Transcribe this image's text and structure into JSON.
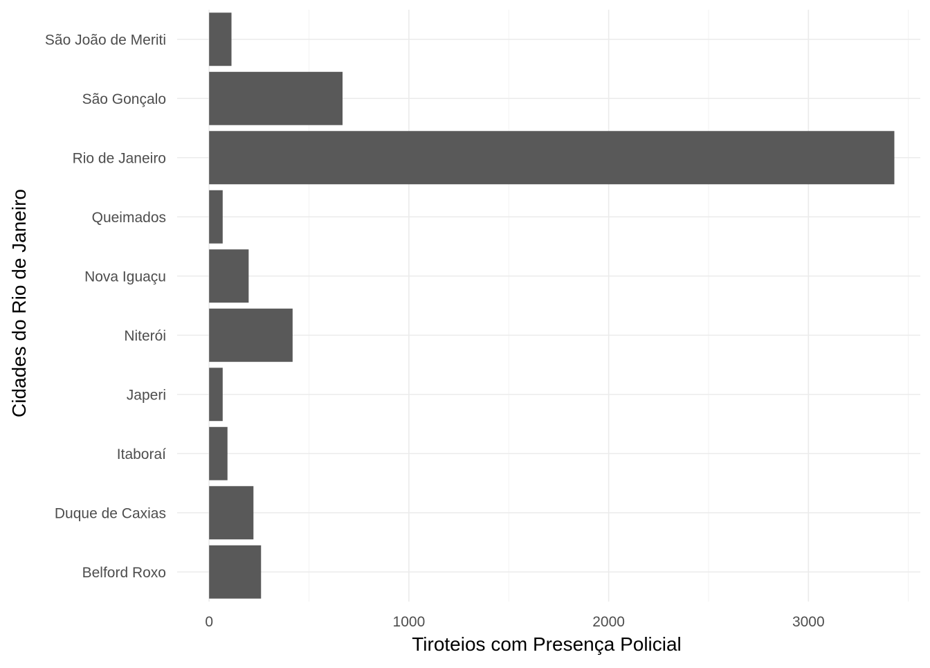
{
  "chart_data": {
    "type": "bar",
    "orientation": "horizontal",
    "title": "",
    "xlabel": "Tiroteios com Presença Policial",
    "ylabel": "Cidades do Rio de Janeiro",
    "categories": [
      "Belford Roxo",
      "Duque de Caxias",
      "Itaboraí",
      "Japeri",
      "Niterói",
      "Nova Iguaçu",
      "Queimados",
      "Rio de Janeiro",
      "São Gonçalo",
      "São João de Meriti"
    ],
    "values": [
      260,
      222,
      92,
      68,
      418,
      198,
      68,
      3430,
      668,
      112
    ],
    "xlim": [
      -160,
      3560
    ],
    "xticks": [
      0,
      1000,
      2000,
      3000
    ],
    "xtick_labels": [
      "0",
      "1000",
      "2000",
      "3000"
    ],
    "grid": true,
    "legend": "none",
    "bar_color": "#595959",
    "grid_color": "#ebebeb",
    "text_color": "#4d4d4d"
  }
}
